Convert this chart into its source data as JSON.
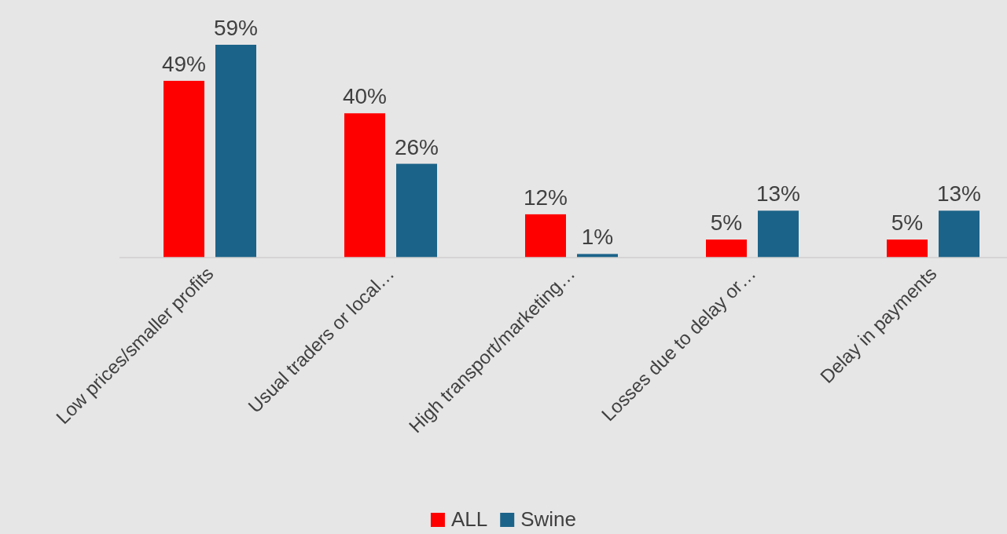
{
  "chart_data": {
    "type": "bar",
    "categories": [
      "Low prices/smaller profits",
      "Usual traders or local…",
      "High transport/marketing…",
      "Losses due to delay or…",
      "Delay in payments"
    ],
    "series": [
      {
        "name": "ALL",
        "color": "#ff0000",
        "values": [
          49,
          40,
          12,
          5,
          5
        ],
        "value_labels": [
          "49%",
          "40%",
          "12%",
          "5%",
          "5%"
        ]
      },
      {
        "name": "Swine",
        "color": "#1b6389",
        "values": [
          59,
          26,
          1,
          13,
          13
        ],
        "value_labels": [
          "59%",
          "26%",
          "1%",
          "13%",
          "13%"
        ]
      }
    ],
    "legend": "bottom"
  }
}
